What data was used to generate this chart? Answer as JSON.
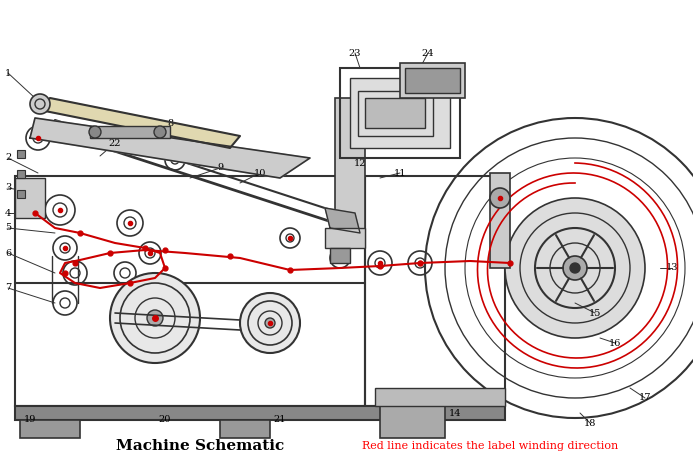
{
  "title": "Machine Schematic",
  "subtitle": "Red line indicates the label winding direction",
  "title_color": "black",
  "subtitle_color": "red",
  "background_color": "white",
  "line_color": "#333333",
  "red_color": "#cc0000",
  "figsize": [
    6.93,
    4.68
  ],
  "dpi": 100
}
